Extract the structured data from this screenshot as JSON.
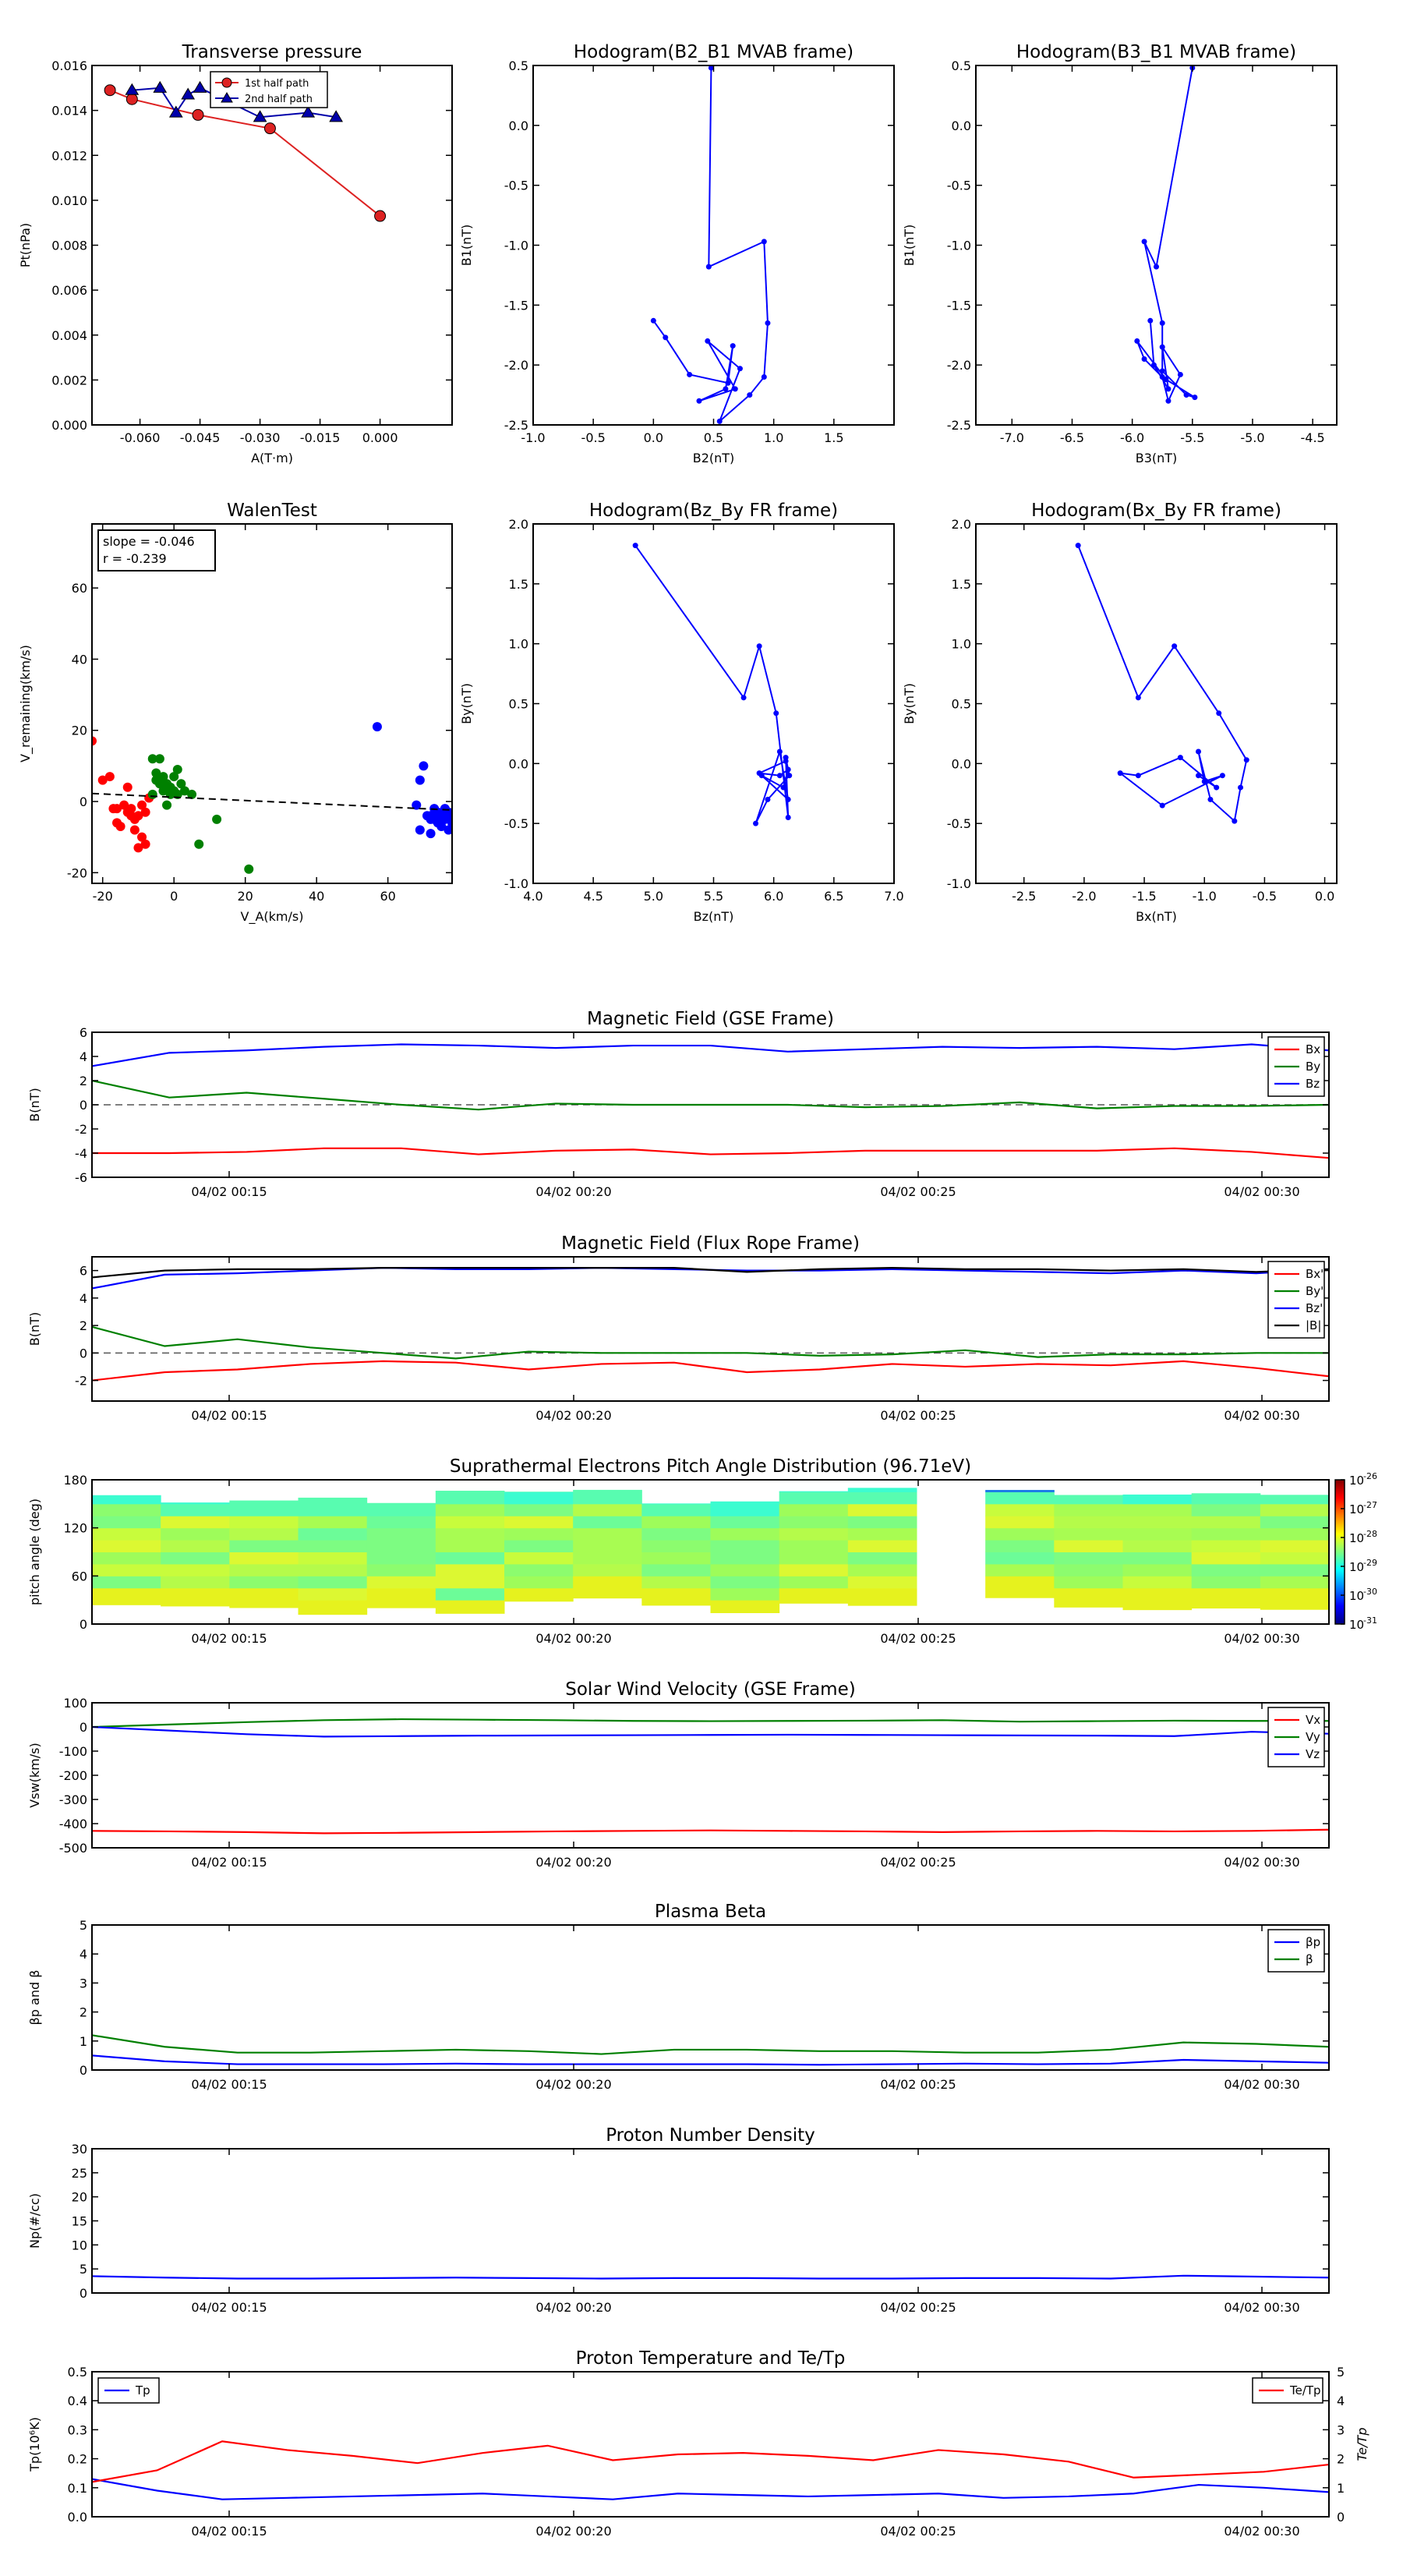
{
  "chart_data": [
    {
      "id": "tp",
      "type": "line",
      "title": "Transverse pressure",
      "xlabel": "A(T·m)",
      "ylabel": "Pt(nPa)",
      "xlim": [
        -0.072,
        0.018
      ],
      "ylim": [
        0.0,
        0.016
      ],
      "xticks": [
        "-0.060",
        "-0.045",
        "-0.030",
        "-0.015",
        "0.000"
      ],
      "yticks": [
        "0.000",
        "0.002",
        "0.004",
        "0.006",
        "0.008",
        "0.010",
        "0.012",
        "0.014",
        "0.016"
      ],
      "grid": false,
      "legend": "top-center",
      "series": [
        {
          "name": "1st half path",
          "color": "#dd2222",
          "marker": "circle",
          "x": [
            0.0,
            -0.0275,
            -0.0455,
            -0.062,
            -0.0675
          ],
          "y": [
            0.0093,
            0.0132,
            0.0138,
            0.0145,
            0.0149
          ]
        },
        {
          "name": "2nd half path",
          "color": "#0000aa",
          "marker": "triangle",
          "x": [
            -0.062,
            -0.055,
            -0.051,
            -0.048,
            -0.045,
            -0.03,
            -0.018,
            -0.011
          ],
          "y": [
            0.0149,
            0.015,
            0.0139,
            0.0147,
            0.015,
            0.0137,
            0.0139,
            0.0137
          ]
        }
      ]
    },
    {
      "id": "h1",
      "type": "line",
      "title": "Hodogram(B2_B1 MVAB frame)",
      "xlabel": "B2(nT)",
      "ylabel": "B1(nT)",
      "xlim": [
        -1.0,
        2.0
      ],
      "ylim": [
        -2.5,
        0.5
      ],
      "xticks": [
        "-1.0",
        "-0.5",
        "0.0",
        "0.5",
        "1.0",
        "1.5"
      ],
      "yticks": [
        "-2.5",
        "-2.0",
        "-1.5",
        "-1.0",
        "-0.5",
        "0.0",
        "0.5"
      ],
      "series": [
        {
          "name": "",
          "color": "#0000ff",
          "x": [
            0.48,
            0.46,
            0.92,
            0.95,
            0.92,
            0.8,
            0.55,
            0.72,
            0.45,
            0.68,
            0.38,
            0.6,
            0.66,
            0.62,
            0.3,
            0.1,
            0.0
          ],
          "y": [
            0.48,
            -1.18,
            -0.97,
            -1.65,
            -2.1,
            -2.25,
            -2.47,
            -2.03,
            -1.8,
            -2.2,
            -2.3,
            -2.2,
            -1.84,
            -2.15,
            -2.08,
            -1.77,
            -1.63
          ]
        }
      ]
    },
    {
      "id": "h2",
      "type": "line",
      "title": "Hodogram(B3_B1 MVAB frame)",
      "xlabel": "B3(nT)",
      "ylabel": "B1(nT)",
      "xlim": [
        -7.3,
        -4.3
      ],
      "ylim": [
        -2.5,
        0.5
      ],
      "xticks": [
        "-7.0",
        "-6.5",
        "-6.0",
        "-5.5",
        "-5.0",
        "-4.5"
      ],
      "yticks": [
        "-2.5",
        "-2.0",
        "-1.5",
        "-1.0",
        "-0.5",
        "0.0",
        "0.5"
      ],
      "series": [
        {
          "name": "",
          "color": "#0000ff",
          "x": [
            -5.5,
            -5.8,
            -5.9,
            -5.75,
            -5.75,
            -5.55,
            -5.48,
            -5.72,
            -5.96,
            -5.9,
            -5.75,
            -5.7,
            -5.6,
            -5.75,
            -5.7,
            -5.82,
            -5.85
          ],
          "y": [
            0.48,
            -1.18,
            -0.97,
            -1.65,
            -2.05,
            -2.25,
            -2.27,
            -2.12,
            -1.8,
            -1.95,
            -2.1,
            -2.3,
            -2.08,
            -1.85,
            -2.2,
            -2.0,
            -1.63
          ]
        }
      ]
    },
    {
      "id": "walen",
      "type": "scatter",
      "title": "WalenTest",
      "xlabel": "V_A(km/s)",
      "ylabel": "V_remaining(km/s)",
      "xlim": [
        -23,
        78
      ],
      "ylim": [
        -23,
        78
      ],
      "xticks": [
        "-20",
        "0",
        "20",
        "40",
        "60"
      ],
      "yticks": [
        "-20",
        "0",
        "20",
        "40",
        "60"
      ],
      "annotation_slope": "slope = -0.046",
      "annotation_r": "r = -0.239",
      "fit": {
        "slope": -0.046,
        "intercept": 1.2
      },
      "series": [
        {
          "name": "",
          "color": "#ff0000",
          "x": [
            -23,
            -20,
            -18,
            -17,
            -16,
            -15,
            -14,
            -13,
            -12,
            -12,
            -11,
            -11,
            -10,
            -10,
            -9,
            -9,
            -8,
            -8,
            -7,
            -16,
            -13
          ],
          "y": [
            17,
            6,
            7,
            -2,
            -2,
            -7,
            -1,
            -3,
            -4,
            -2,
            -5,
            -8,
            -13,
            -4,
            -1,
            -10,
            -12,
            -3,
            1,
            -6,
            4
          ]
        },
        {
          "name": "",
          "color": "#008000",
          "x": [
            -6,
            -5,
            -5,
            -4,
            -4,
            -3,
            -3,
            -2,
            -2,
            -1,
            -1,
            0,
            0,
            1,
            1,
            2,
            3,
            5,
            7,
            12,
            21,
            -6,
            -4
          ],
          "y": [
            2,
            6,
            8,
            5,
            12,
            3,
            7,
            -1,
            5,
            2,
            4,
            7,
            3,
            9,
            2,
            5,
            3,
            2,
            -12,
            -5,
            -19,
            12,
            6
          ]
        },
        {
          "name": "",
          "color": "#0000ff",
          "x": [
            57,
            68,
            69,
            70,
            71,
            72,
            72,
            73,
            73,
            74,
            74,
            75,
            75,
            76,
            76,
            77,
            77,
            78,
            78,
            69,
            72
          ],
          "y": [
            21,
            -1,
            6,
            10,
            -4,
            -4,
            -9,
            -2,
            -5,
            -6,
            -3,
            -4,
            -7,
            -2,
            -5,
            -8,
            -3,
            -6,
            -4,
            -8,
            -5
          ]
        }
      ]
    },
    {
      "id": "h3",
      "type": "line",
      "title": "Hodogram(Bz_By FR frame)",
      "xlabel": "Bz(nT)",
      "ylabel": "By(nT)",
      "xlim": [
        4.0,
        7.0
      ],
      "ylim": [
        -1.0,
        2.0
      ],
      "xticks": [
        "4.0",
        "4.5",
        "5.0",
        "5.5",
        "6.0",
        "6.5",
        "7.0"
      ],
      "yticks": [
        "-1.0",
        "-0.5",
        "0.0",
        "0.5",
        "1.0",
        "1.5",
        "2.0"
      ],
      "series": [
        {
          "name": "",
          "color": "#0000ff",
          "x": [
            4.85,
            5.75,
            5.88,
            6.02,
            6.12,
            6.1,
            6.13,
            5.95,
            5.85,
            6.05,
            6.12,
            5.9,
            6.08,
            6.12,
            6.05,
            5.88,
            6.1
          ],
          "y": [
            1.82,
            0.55,
            0.98,
            0.42,
            -0.45,
            0.05,
            -0.1,
            -0.3,
            -0.5,
            0.1,
            -0.3,
            -0.1,
            -0.2,
            -0.05,
            -0.1,
            -0.08,
            0.02
          ]
        }
      ]
    },
    {
      "id": "h4",
      "type": "line",
      "title": "Hodogram(Bx_By FR frame)",
      "xlabel": "Bx(nT)",
      "ylabel": "By(nT)",
      "xlim": [
        -2.9,
        0.1
      ],
      "ylim": [
        -1.0,
        2.0
      ],
      "xticks": [
        "-2.5",
        "-2.0",
        "-1.5",
        "-1.0",
        "-0.5",
        "0.0"
      ],
      "yticks": [
        "-1.0",
        "-0.5",
        "0.0",
        "0.5",
        "1.0",
        "1.5",
        "2.0"
      ],
      "series": [
        {
          "name": "",
          "color": "#0000ff",
          "x": [
            -2.05,
            -1.55,
            -1.25,
            -0.88,
            -0.65,
            -0.7,
            -0.75,
            -0.95,
            -1.05,
            -1.0,
            -0.85,
            -1.35,
            -1.7,
            -1.55,
            -1.2,
            -0.9,
            -1.05
          ],
          "y": [
            1.82,
            0.55,
            0.98,
            0.42,
            0.03,
            -0.2,
            -0.48,
            -0.3,
            0.1,
            -0.15,
            -0.1,
            -0.35,
            -0.08,
            -0.1,
            0.05,
            -0.2,
            -0.1
          ]
        }
      ]
    },
    {
      "id": "mag_gse",
      "type": "line",
      "title": "Magnetic Field (GSE Frame)",
      "ylabel": "B(nT)",
      "ylim": [
        -6,
        6
      ],
      "yticks": [
        "-6",
        "-4",
        "-2",
        "0",
        "2",
        "4",
        "6"
      ],
      "xtick_labels": [
        "04/02 00:15",
        "04/02 00:20",
        "04/02 00:25",
        "04/02 00:30"
      ],
      "zero_line": true,
      "legend": "top-right",
      "series": [
        {
          "name": "Bx",
          "color": "#ff0000",
          "values": [
            -4.0,
            -4.0,
            -3.9,
            -3.6,
            -3.6,
            -4.1,
            -3.8,
            -3.7,
            -4.1,
            -4.0,
            -3.8,
            -3.8,
            -3.8,
            -3.8,
            -3.6,
            -3.9,
            -4.4
          ]
        },
        {
          "name": "By",
          "color": "#008000",
          "values": [
            2.0,
            0.6,
            1.0,
            0.5,
            0.0,
            -0.4,
            0.1,
            0.0,
            0.0,
            0.0,
            -0.2,
            -0.1,
            0.2,
            -0.3,
            -0.1,
            -0.1,
            0.0
          ]
        },
        {
          "name": "Bz",
          "color": "#0000ff",
          "values": [
            3.2,
            4.3,
            4.5,
            4.8,
            5.0,
            4.9,
            4.7,
            4.9,
            4.9,
            4.4,
            4.6,
            4.8,
            4.7,
            4.8,
            4.6,
            5.0,
            4.5
          ]
        }
      ]
    },
    {
      "id": "mag_fr",
      "type": "line",
      "title": "Magnetic Field (Flux Rope Frame)",
      "ylabel": "B(nT)",
      "ylim": [
        -3.5,
        7
      ],
      "yticks": [
        "-2",
        "0",
        "2",
        "4",
        "6"
      ],
      "xtick_labels": [
        "04/02 00:15",
        "04/02 00:20",
        "04/02 00:25",
        "04/02 00:30"
      ],
      "zero_line": true,
      "legend": "top-right",
      "series": [
        {
          "name": "Bx'",
          "color": "#ff0000",
          "values": [
            -2.0,
            -1.4,
            -1.2,
            -0.8,
            -0.6,
            -0.7,
            -1.2,
            -0.8,
            -0.7,
            -1.4,
            -1.2,
            -0.8,
            -1.0,
            -0.8,
            -0.9,
            -0.6,
            -1.1,
            -1.7
          ]
        },
        {
          "name": "By'",
          "color": "#008000",
          "values": [
            1.9,
            0.5,
            1.0,
            0.4,
            0.0,
            -0.4,
            0.1,
            0.0,
            0.0,
            0.0,
            -0.2,
            -0.1,
            0.2,
            -0.3,
            -0.1,
            -0.1,
            0.0,
            0.0
          ]
        },
        {
          "name": "Bz'",
          "color": "#0000ff",
          "values": [
            4.7,
            5.7,
            5.8,
            6.0,
            6.2,
            6.1,
            6.1,
            6.2,
            6.1,
            6.0,
            6.0,
            6.1,
            6.0,
            5.9,
            5.8,
            6.0,
            5.8,
            6.1
          ]
        },
        {
          "name": "|B|",
          "color": "#000000",
          "values": [
            5.5,
            6.0,
            6.1,
            6.1,
            6.2,
            6.2,
            6.2,
            6.2,
            6.2,
            5.9,
            6.1,
            6.2,
            6.1,
            6.1,
            6.0,
            6.1,
            5.9,
            6.1
          ]
        }
      ]
    },
    {
      "id": "pad",
      "type": "heatmap",
      "title": "Suprathermal Electrons Pitch Angle Distribution (96.71eV)",
      "ylabel": "pitch angle (deg)",
      "ylim": [
        0,
        180
      ],
      "yticks": [
        "0",
        "60",
        "120",
        "180"
      ],
      "xtick_labels": [
        "04/02 00:15",
        "04/02 00:20",
        "04/02 00:25",
        "04/02 00:30"
      ],
      "colorbar_exponents": [
        "-26",
        "-27",
        "-28",
        "-29",
        "-30",
        "-31"
      ],
      "colorbar_base": "10"
    },
    {
      "id": "vsw",
      "type": "line",
      "title": "Solar Wind Velocity (GSE Frame)",
      "ylabel": "Vsw(km/s)",
      "ylim": [
        -500,
        100
      ],
      "yticks": [
        "-500",
        "-400",
        "-300",
        "-200",
        "-100",
        "0",
        "100"
      ],
      "xtick_labels": [
        "04/02 00:15",
        "04/02 00:20",
        "04/02 00:25",
        "04/02 00:30"
      ],
      "legend": "top-right",
      "series": [
        {
          "name": "Vx",
          "color": "#ff0000",
          "values": [
            -430,
            -432,
            -435,
            -440,
            -438,
            -435,
            -432,
            -430,
            -428,
            -430,
            -432,
            -435,
            -432,
            -430,
            -432,
            -430,
            -425
          ]
        },
        {
          "name": "Vy",
          "color": "#008000",
          "values": [
            0,
            10,
            20,
            28,
            32,
            30,
            28,
            25,
            24,
            25,
            26,
            28,
            22,
            24,
            26,
            25,
            25
          ]
        },
        {
          "name": "Vz",
          "color": "#0000ff",
          "values": [
            0,
            -15,
            -30,
            -40,
            -38,
            -36,
            -35,
            -34,
            -33,
            -32,
            -33,
            -34,
            -35,
            -36,
            -38,
            -20,
            -28
          ]
        }
      ]
    },
    {
      "id": "beta",
      "type": "line",
      "title": "Plasma Beta",
      "ylabel": "βp and β",
      "ylim": [
        0,
        5
      ],
      "yticks": [
        "0",
        "1",
        "2",
        "3",
        "4",
        "5"
      ],
      "xtick_labels": [
        "04/02 00:15",
        "04/02 00:20",
        "04/02 00:25",
        "04/02 00:30"
      ],
      "legend": "top-right",
      "series": [
        {
          "name": "βp",
          "color": "#0000ff",
          "values": [
            0.5,
            0.3,
            0.2,
            0.2,
            0.2,
            0.22,
            0.2,
            0.2,
            0.2,
            0.2,
            0.18,
            0.2,
            0.22,
            0.2,
            0.22,
            0.35,
            0.3,
            0.25
          ]
        },
        {
          "name": "β",
          "color": "#008000",
          "values": [
            1.2,
            0.8,
            0.6,
            0.6,
            0.65,
            0.7,
            0.65,
            0.55,
            0.7,
            0.7,
            0.65,
            0.65,
            0.6,
            0.6,
            0.7,
            0.95,
            0.9,
            0.8
          ]
        }
      ]
    },
    {
      "id": "np",
      "type": "line",
      "title": "Proton Number Density",
      "ylabel": "Np(#/cc)",
      "ylim": [
        0,
        30
      ],
      "yticks": [
        "0",
        "5",
        "10",
        "15",
        "20",
        "25",
        "30"
      ],
      "xtick_labels": [
        "04/02 00:15",
        "04/02 00:20",
        "04/02 00:25",
        "04/02 00:30"
      ],
      "series": [
        {
          "name": "",
          "color": "#0000ff",
          "values": [
            3.5,
            3.2,
            3.0,
            3.0,
            3.1,
            3.2,
            3.1,
            3.0,
            3.1,
            3.1,
            3.0,
            3.0,
            3.1,
            3.1,
            3.0,
            3.6,
            3.4,
            3.2
          ]
        }
      ]
    },
    {
      "id": "tp_temp",
      "type": "line",
      "title": "Proton Temperature and Te/Tp",
      "ylabel": "Tp(10⁶K)",
      "ylabel_right": "Te/Tp",
      "ylim": [
        0,
        0.5
      ],
      "ylim_right": [
        0,
        5
      ],
      "yticks": [
        "0.0",
        "0.1",
        "0.2",
        "0.3",
        "0.4",
        "0.5"
      ],
      "yticks_right": [
        "0",
        "1",
        "2",
        "3",
        "4",
        "5"
      ],
      "xtick_labels": [
        "04/02 00:15",
        "04/02 00:20",
        "04/02 00:25",
        "04/02 00:30"
      ],
      "legend_left": "top-left",
      "legend_right": "top-right",
      "series": [
        {
          "name": "Tp",
          "color": "#0000ff",
          "axis": "left",
          "values": [
            0.13,
            0.09,
            0.06,
            0.065,
            0.07,
            0.075,
            0.08,
            0.07,
            0.06,
            0.08,
            0.075,
            0.07,
            0.075,
            0.08,
            0.065,
            0.07,
            0.08,
            0.11,
            0.1,
            0.085
          ]
        },
        {
          "name": "Te/Tp",
          "color": "#ff0000",
          "axis": "right",
          "values": [
            1.2,
            1.6,
            2.6,
            2.3,
            2.1,
            1.85,
            2.2,
            2.45,
            1.95,
            2.15,
            2.2,
            2.1,
            1.95,
            2.3,
            2.15,
            1.9,
            1.35,
            1.45,
            1.55,
            1.8
          ]
        }
      ]
    }
  ]
}
